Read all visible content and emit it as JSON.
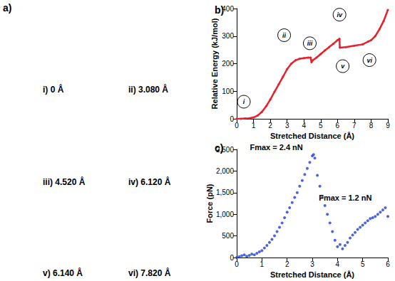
{
  "chart_data": [
    {
      "type": "line",
      "title": "b)",
      "x": [
        0,
        0.25,
        0.5,
        0.75,
        1,
        1.25,
        1.5,
        1.75,
        2,
        2.25,
        2.5,
        2.75,
        3,
        3.25,
        3.5,
        3.75,
        4,
        4.25,
        4.4,
        4.45,
        4.52,
        4.75,
        5,
        5.25,
        5.5,
        5.75,
        6,
        6.12,
        6.14,
        6.5,
        7,
        7.5,
        7.82,
        8,
        8.25,
        8.5,
        8.75,
        9
      ],
      "values": [
        0,
        0,
        1,
        2,
        5,
        12,
        25,
        45,
        70,
        98,
        125,
        152,
        180,
        200,
        212,
        218,
        220,
        222,
        222,
        205,
        212,
        222,
        235,
        248,
        260,
        272,
        285,
        290,
        258,
        260,
        265,
        270,
        280,
        285,
        300,
        325,
        355,
        395
      ],
      "color": "#e8202a",
      "marker": "circle",
      "x_label": "Stretched Distance (Å)",
      "y_label": "Relative Energy (kJ/mol)",
      "xlim": [
        0,
        9
      ],
      "xticks": [
        0,
        1,
        2,
        3,
        4,
        5,
        6,
        7,
        8,
        9
      ],
      "ylim": [
        0,
        400
      ],
      "yticks": [
        0,
        100,
        200,
        300,
        400
      ],
      "annotations": [
        {
          "text": "i",
          "x": 0,
          "y": 0
        },
        {
          "text": "ii",
          "x": 3.08,
          "y": 200
        },
        {
          "text": "iii",
          "x": 4.52,
          "y": 212
        },
        {
          "text": "iv",
          "x": 6.12,
          "y": 290
        },
        {
          "text": "v",
          "x": 6.14,
          "y": 258
        },
        {
          "text": "vi",
          "x": 7.82,
          "y": 280
        }
      ]
    },
    {
      "type": "scatter",
      "title": "c)",
      "x": [
        0,
        0.1,
        0.2,
        0.3,
        0.4,
        0.5,
        0.6,
        0.7,
        0.8,
        0.9,
        1.0,
        1.1,
        1.2,
        1.3,
        1.4,
        1.5,
        1.6,
        1.7,
        1.8,
        1.9,
        2.0,
        2.1,
        2.2,
        2.3,
        2.4,
        2.5,
        2.6,
        2.7,
        2.8,
        2.9,
        3.0,
        3.05,
        3.1,
        3.2,
        3.3,
        3.4,
        3.5,
        3.6,
        3.7,
        3.8,
        3.9,
        4.0,
        4.1,
        4.2,
        4.3,
        4.4,
        4.5,
        4.6,
        4.7,
        4.8,
        4.9,
        5.0,
        5.1,
        5.2,
        5.3,
        5.4,
        5.5,
        5.6,
        5.7,
        5.8,
        5.9,
        6.0
      ],
      "values": [
        0,
        20,
        40,
        60,
        30,
        50,
        80,
        60,
        100,
        130,
        160,
        220,
        280,
        350,
        420,
        500,
        600,
        700,
        800,
        920,
        1050,
        1150,
        1270,
        1390,
        1500,
        1650,
        1780,
        1920,
        2060,
        2200,
        2350,
        2380,
        2300,
        1900,
        1650,
        1400,
        1200,
        1000,
        800,
        600,
        400,
        250,
        300,
        200,
        280,
        350,
        450,
        520,
        580,
        650,
        700,
        750,
        800,
        850,
        900,
        920,
        950,
        1000,
        1050,
        1100,
        1150,
        950
      ],
      "color": "#1f3fd1",
      "marker": "circle",
      "x_label": "Stretched Distance (Å)",
      "y_label": "Force (pN)",
      "xlim": [
        0,
        6
      ],
      "xticks": [
        0,
        1,
        2,
        3,
        4,
        5,
        6
      ],
      "ylim": [
        0,
        2500
      ],
      "yticks": [
        0,
        500,
        1000,
        1500,
        2000,
        2500
      ],
      "annotations": [
        {
          "text": "Fmax = 2.4 nN",
          "x": 3.05,
          "y": 2380
        },
        {
          "text": "Fmax = 1.2 nN",
          "x": 5.9,
          "y": 1150
        }
      ]
    }
  ],
  "panel_a": {
    "label": "a)",
    "structures": [
      "i) 0 Å",
      "ii) 3.080 Å",
      "iii) 4.520 Å",
      "iv) 6.120 Å",
      "v) 6.140 Å",
      "vi) 7.820 Å"
    ]
  }
}
